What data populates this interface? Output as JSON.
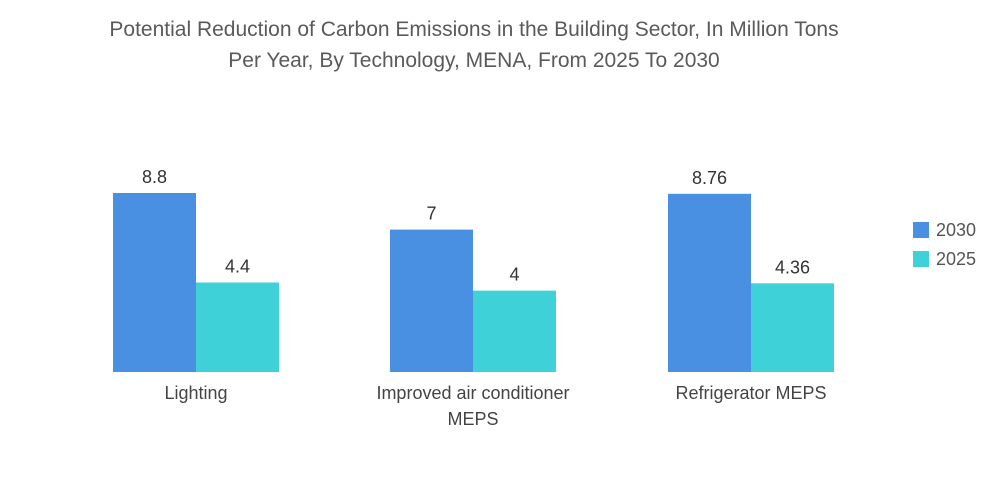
{
  "chart_data": {
    "type": "bar",
    "title_lines": [
      "Potential Reduction of Carbon Emissions in the Building Sector, In Million Tons",
      "Per Year, By Technology, MENA, From 2025 To 2030"
    ],
    "categories": [
      [
        "Lighting"
      ],
      [
        "Improved air conditioner",
        "MEPS"
      ],
      [
        "Refrigerator MEPS"
      ]
    ],
    "series": [
      {
        "name": "2030",
        "color": "#4a90e2",
        "values": [
          8.8,
          7,
          8.76
        ],
        "labels": [
          "8.8",
          "7",
          "8.76"
        ]
      },
      {
        "name": "2025",
        "color": "#3ed1d8",
        "values": [
          4.4,
          4,
          4.36
        ],
        "labels": [
          "4.4",
          "4",
          "4.36"
        ]
      }
    ],
    "ylim": [
      0,
      8.8
    ],
    "xlabel": "",
    "ylabel": "",
    "grid": false,
    "legend_position": "right"
  }
}
